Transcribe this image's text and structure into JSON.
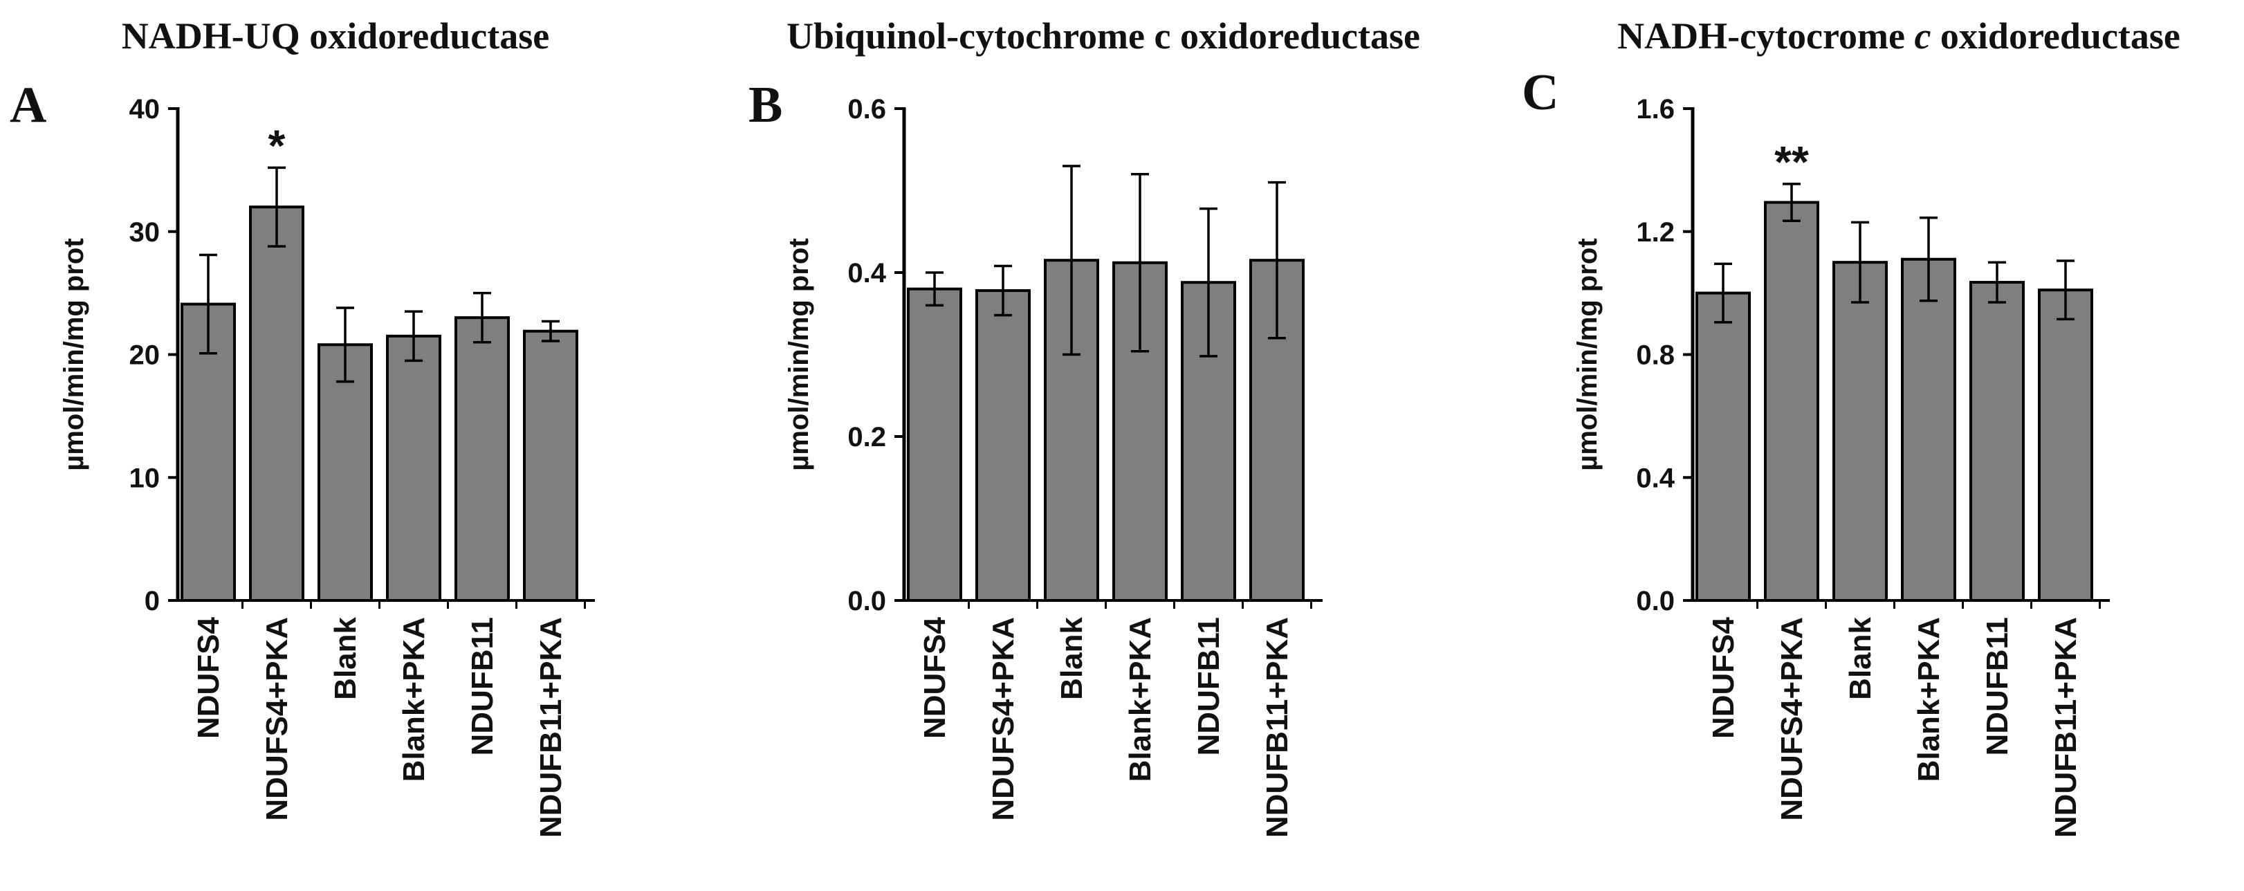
{
  "chart_data": [
    {
      "type": "bar",
      "letter": "A",
      "title_parts": [
        {
          "text": "NADH-UQ oxidoreductase",
          "italic": false
        }
      ],
      "ylabel": "µmol/min/mg prot",
      "xlabel": "",
      "ylim": [
        0,
        40
      ],
      "yticks": [
        "0",
        "10",
        "20",
        "30",
        "40"
      ],
      "ytick_values": [
        0,
        10,
        20,
        30,
        40
      ],
      "categories": [
        "NDUFS4",
        "NDUFS4+PKA",
        "Blank",
        "Blank+PKA",
        "NDUFB11",
        "NDUFB11+PKA"
      ],
      "values": [
        24.1,
        32.0,
        20.8,
        21.5,
        23.0,
        21.9
      ],
      "errors": [
        4.0,
        3.2,
        3.0,
        2.0,
        2.0,
        0.8
      ],
      "significance": [
        "",
        "*",
        "",
        "",
        "",
        ""
      ],
      "bar_color": "#7f7f7f"
    },
    {
      "type": "bar",
      "letter": "B",
      "title_parts": [
        {
          "text": "Ubiquinol-cytochrome c oxidoreductase",
          "italic": false
        }
      ],
      "ylabel": "µmol/min/mg prot",
      "xlabel": "",
      "ylim": [
        0,
        0.6
      ],
      "yticks": [
        "0.0",
        "0.2",
        "0.4",
        "0.6"
      ],
      "ytick_values": [
        0,
        0.2,
        0.4,
        0.6
      ],
      "categories": [
        "NDUFS4",
        "NDUFS4+PKA",
        "Blank",
        "Blank+PKA",
        "NDUFB11",
        "NDUFB11+PKA"
      ],
      "values": [
        0.38,
        0.378,
        0.415,
        0.412,
        0.388,
        0.415
      ],
      "errors": [
        0.02,
        0.03,
        0.115,
        0.108,
        0.09,
        0.095
      ],
      "significance": [
        "",
        "",
        "",
        "",
        "",
        ""
      ],
      "bar_color": "#7f7f7f"
    },
    {
      "type": "bar",
      "letter": "C",
      "title_parts": [
        {
          "text": "NADH-cytocrome ",
          "italic": false
        },
        {
          "text": "c",
          "italic": true
        },
        {
          "text": " oxidoreductase",
          "italic": false
        }
      ],
      "ylabel": "µmol/min/mg prot",
      "xlabel": "",
      "ylim": [
        0,
        1.6
      ],
      "yticks": [
        "0.0",
        "0.4",
        "0.8",
        "1.2",
        "1.6"
      ],
      "ytick_values": [
        0,
        0.4,
        0.8,
        1.2,
        1.6
      ],
      "categories": [
        "NDUFS4",
        "NDUFS4+PKA",
        "Blank",
        "Blank+PKA",
        "NDUFB11",
        "NDUFB11+PKA"
      ],
      "values": [
        1.0,
        1.295,
        1.1,
        1.11,
        1.035,
        1.01
      ],
      "errors": [
        0.095,
        0.06,
        0.13,
        0.135,
        0.065,
        0.095
      ],
      "significance": [
        "",
        "**",
        "",
        "",
        "",
        ""
      ],
      "bar_color": "#7f7f7f"
    }
  ]
}
